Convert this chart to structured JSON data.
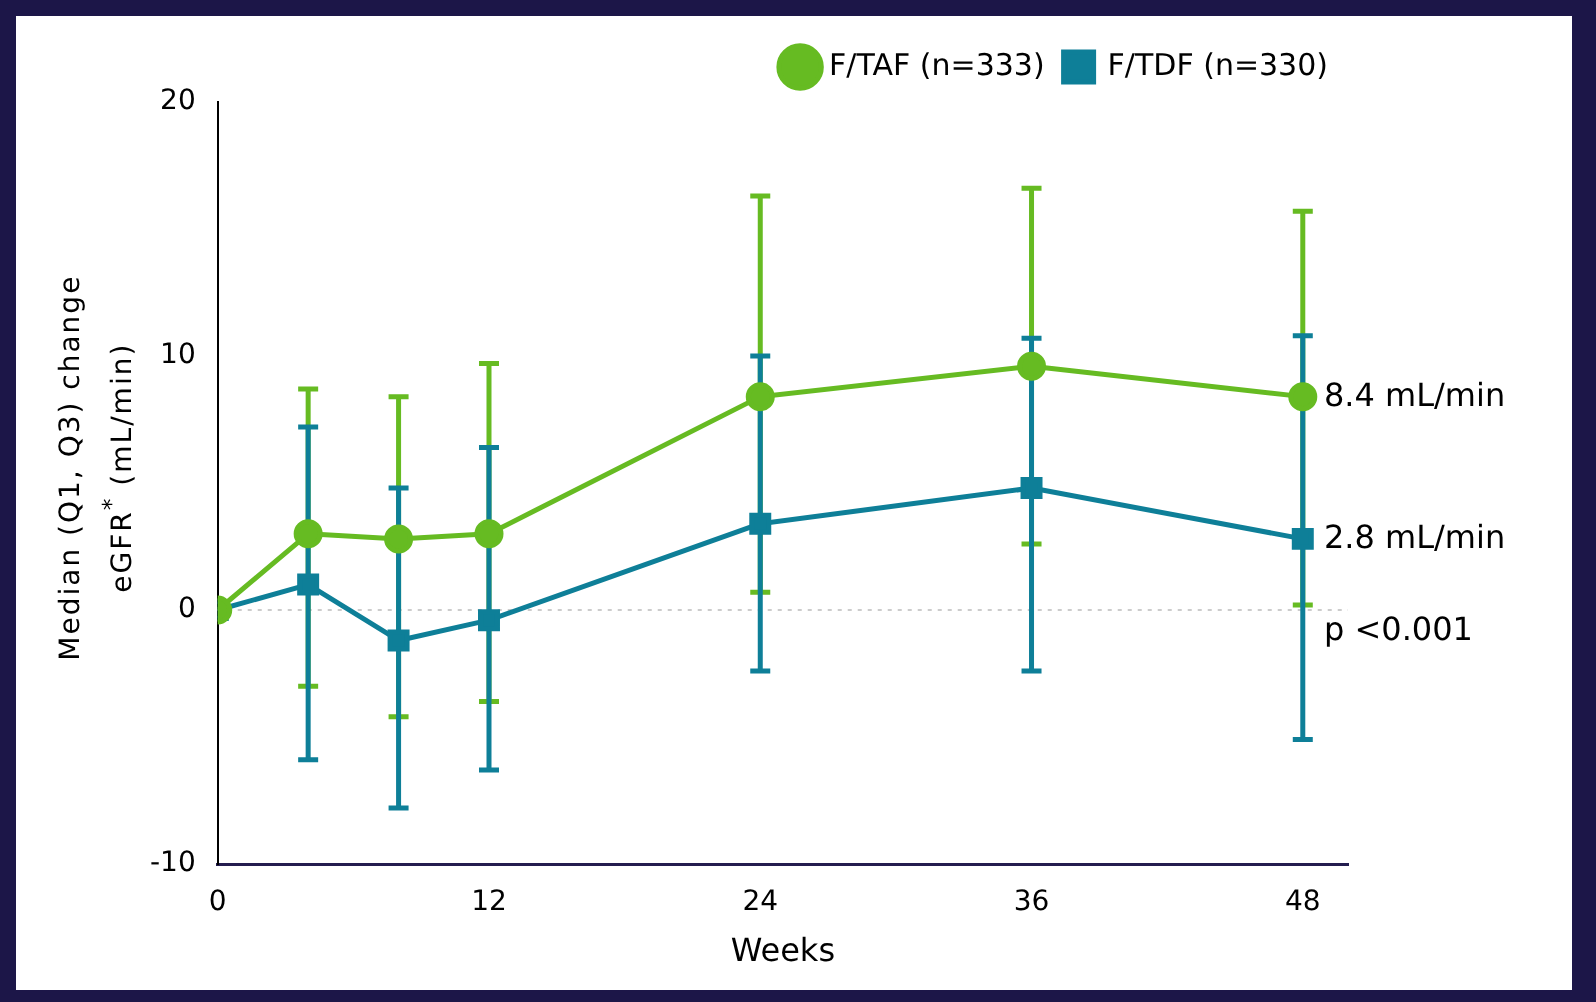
{
  "chart_data": {
    "type": "line",
    "xlabel": "Weeks",
    "ylabel": "Median (Q1, Q3) change\neGFR$^{*}$ (mL/min)",
    "x": [
      0,
      4,
      8,
      12,
      24,
      36,
      48
    ],
    "series": [
      {
        "name": "F/TAF (n=333)",
        "color": "#66bb22",
        "marker": "circle",
        "values": [
          0,
          3.0,
          2.8,
          3.0,
          8.4,
          9.6,
          8.4
        ],
        "errors": [
          null,
          [
            -3.0,
            8.7
          ],
          [
            -4.2,
            8.4
          ],
          [
            -3.6,
            9.7
          ],
          [
            0.7,
            16.3
          ],
          [
            2.6,
            16.6
          ],
          [
            0.2,
            15.7
          ]
        ]
      },
      {
        "name": "F/TDF (n=330)",
        "color": "#0e7f98",
        "marker": "square",
        "values": [
          0,
          1.0,
          -1.2,
          -0.4,
          3.4,
          4.8,
          2.8
        ],
        "errors": [
          null,
          [
            -5.9,
            7.2
          ],
          [
            -7.8,
            4.8
          ],
          [
            -6.3,
            6.4
          ],
          [
            -2.4,
            10.0
          ],
          [
            -2.4,
            10.7
          ],
          [
            -5.1,
            10.8
          ]
        ]
      }
    ],
    "xlim": [
      0,
      50
    ],
    "xticks": [
      0,
      12,
      24,
      36,
      48
    ],
    "ylim": [
      -10,
      20
    ],
    "yticks": [
      -10,
      0,
      10,
      20
    ],
    "ref_lines": [
      {
        "axis": "y",
        "value": 0,
        "color": "#cccccc",
        "line_style": "dotted"
      }
    ],
    "annotations": [
      "8.4 mL/min",
      "2.8 mL/min",
      "p <0.001"
    ],
    "legend": "top right",
    "grid": false,
    "line_style": "solid"
  }
}
